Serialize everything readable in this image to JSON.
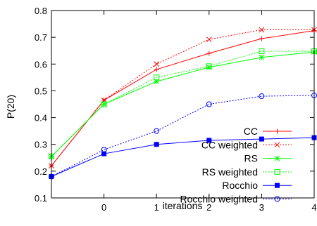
{
  "chart_data": {
    "type": "line",
    "xlabel": "iterations",
    "ylabel": "P(20)",
    "xlim": [
      -1,
      4
    ],
    "ylim": [
      0.1,
      0.8
    ],
    "x_ticks": [
      {
        "value": 0,
        "label": "0"
      },
      {
        "value": 1,
        "label": "1"
      },
      {
        "value": 2,
        "label": "2"
      },
      {
        "value": 3,
        "label": "3"
      },
      {
        "value": 4,
        "label": "4"
      }
    ],
    "y_ticks": [
      {
        "value": 0.1,
        "label": "0.1"
      },
      {
        "value": 0.2,
        "label": "0.2"
      },
      {
        "value": 0.3,
        "label": "0.3"
      },
      {
        "value": 0.4,
        "label": "0.4"
      },
      {
        "value": 0.5,
        "label": "0.5"
      },
      {
        "value": 0.6,
        "label": "0.6"
      },
      {
        "value": 0.7,
        "label": "0.7"
      },
      {
        "value": 0.8,
        "label": "0.8"
      }
    ],
    "grid": false,
    "legend_position": "bottom-right",
    "x": [
      -1,
      0,
      1,
      2,
      3,
      4
    ],
    "series": [
      {
        "name": "CC",
        "color": "#ff0000",
        "dash": false,
        "marker": "plus",
        "values": [
          0.22,
          0.465,
          0.58,
          0.64,
          0.695,
          0.725
        ]
      },
      {
        "name": "CC weighted",
        "color": "#ff0000",
        "dash": true,
        "marker": "cross",
        "values": [
          0.22,
          0.465,
          0.6,
          0.692,
          0.728,
          0.728
        ]
      },
      {
        "name": "RS",
        "color": "#00ff00",
        "dash": false,
        "marker": "star",
        "values": [
          0.255,
          0.45,
          0.535,
          0.588,
          0.625,
          0.645
        ]
      },
      {
        "name": "RS weighted",
        "color": "#00ff00",
        "dash": true,
        "marker": "box",
        "values": [
          0.255,
          0.45,
          0.55,
          0.592,
          0.648,
          0.648
        ]
      },
      {
        "name": "Rocchio",
        "color": "#0000ff",
        "dash": false,
        "marker": "filled-box",
        "values": [
          0.18,
          0.265,
          0.3,
          0.315,
          0.32,
          0.325
        ]
      },
      {
        "name": "Rocchio weighted",
        "color": "#0000ff",
        "dash": true,
        "marker": "circle",
        "values": [
          0.18,
          0.28,
          0.35,
          0.45,
          0.48,
          0.483
        ]
      }
    ]
  }
}
